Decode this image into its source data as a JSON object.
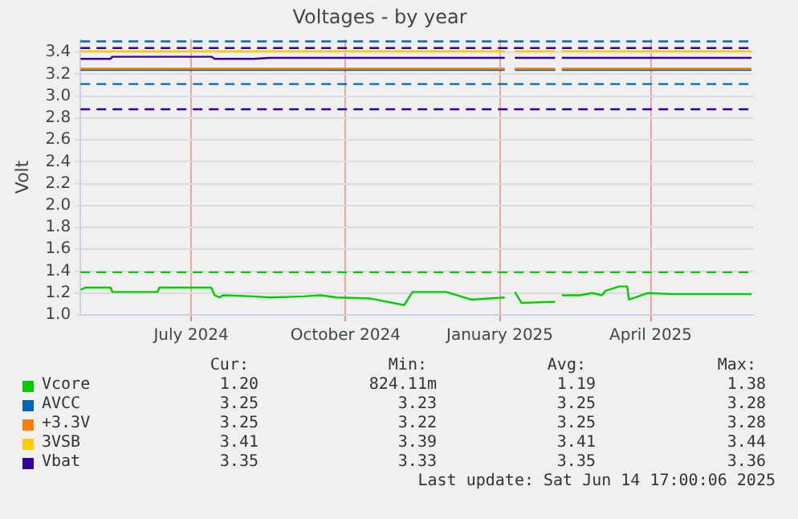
{
  "chart_data": {
    "type": "line",
    "title": "Voltages - by year",
    "ylabel": "Volt",
    "x": [
      "2024-05-10",
      "2024-05-13",
      "2024-05-28",
      "2024-05-29",
      "2024-06-25",
      "2024-06-26",
      "2024-07-27",
      "2024-07-29",
      "2024-08-01",
      "2024-08-03",
      "2024-08-21",
      "2024-08-31",
      "2024-09-20",
      "2024-09-30",
      "2024-10-10",
      "2024-10-30",
      "2024-11-19",
      "2024-11-24",
      "2024-12-14",
      "2024-12-29",
      "2025-01-18",
      "2025-01-22",
      "2025-01-24",
      "2025-01-28",
      "2025-02-17",
      "2025-02-19",
      "2025-02-21",
      "2025-03-04",
      "2025-03-11",
      "2025-03-17",
      "2025-03-19",
      "2025-03-27",
      "2025-04-01",
      "2025-04-02",
      "2025-04-06",
      "2025-04-13",
      "2025-04-28",
      "2025-06-14"
    ],
    "series": [
      {
        "name": "Vcore",
        "color": "#00cc00",
        "values": [
          1.23,
          1.25,
          1.25,
          1.21,
          1.21,
          1.25,
          1.25,
          1.18,
          1.16,
          1.18,
          1.17,
          1.16,
          1.17,
          1.18,
          1.16,
          1.15,
          1.09,
          1.21,
          1.21,
          1.14,
          1.16,
          null,
          1.21,
          1.11,
          1.12,
          null,
          1.18,
          1.18,
          1.2,
          1.18,
          1.22,
          1.26,
          1.26,
          1.14,
          1.16,
          1.2,
          1.19,
          1.19
        ]
      },
      {
        "name": "AVCC",
        "color": "#0066b3",
        "values": [
          3.24,
          3.24,
          3.24,
          3.24,
          3.24,
          3.24,
          3.24,
          3.24,
          3.24,
          3.24,
          3.24,
          3.24,
          3.24,
          3.24,
          3.24,
          3.24,
          3.24,
          3.24,
          3.24,
          3.24,
          3.24,
          null,
          3.24,
          3.24,
          3.24,
          null,
          3.24,
          3.24,
          3.24,
          3.24,
          3.24,
          3.24,
          3.24,
          3.24,
          3.24,
          3.24,
          3.24,
          3.24
        ]
      },
      {
        "name": "+3.3V",
        "color": "#ff8000",
        "values": [
          3.25,
          3.25,
          3.25,
          3.25,
          3.25,
          3.25,
          3.25,
          3.25,
          3.25,
          3.25,
          3.25,
          3.25,
          3.25,
          3.25,
          3.25,
          3.25,
          3.25,
          3.25,
          3.25,
          3.25,
          3.25,
          null,
          3.25,
          3.25,
          3.25,
          null,
          3.25,
          3.25,
          3.25,
          3.25,
          3.25,
          3.25,
          3.25,
          3.25,
          3.25,
          3.25,
          3.25,
          3.25
        ]
      },
      {
        "name": "3VSB",
        "color": "#ffcc00",
        "values": [
          3.41,
          3.41,
          3.41,
          3.41,
          3.41,
          3.41,
          3.41,
          3.41,
          3.41,
          3.41,
          3.41,
          3.41,
          3.41,
          3.41,
          3.41,
          3.41,
          3.41,
          3.41,
          3.41,
          3.41,
          3.41,
          null,
          3.41,
          3.41,
          3.41,
          null,
          3.41,
          3.41,
          3.41,
          3.41,
          3.41,
          3.41,
          3.41,
          3.41,
          3.41,
          3.41,
          3.41,
          3.41
        ]
      },
      {
        "name": "Vbat",
        "color": "#330099",
        "values": [
          3.34,
          3.34,
          3.34,
          3.36,
          3.36,
          3.36,
          3.36,
          3.34,
          3.34,
          3.34,
          3.34,
          3.35,
          3.35,
          3.35,
          3.35,
          3.35,
          3.35,
          3.35,
          3.35,
          3.35,
          3.35,
          null,
          3.35,
          3.35,
          3.35,
          null,
          3.35,
          3.35,
          3.35,
          3.35,
          3.35,
          3.35,
          3.35,
          3.35,
          3.35,
          3.35,
          3.35,
          3.35
        ]
      }
    ],
    "xlim": [
      "2024-05-10",
      "2025-06-15"
    ],
    "xticks": [
      {
        "value": "2024-07-15",
        "label": "July 2024"
      },
      {
        "value": "2024-10-15",
        "label": "October 2024"
      },
      {
        "value": "2025-01-15",
        "label": "January 2025"
      },
      {
        "value": "2025-04-15",
        "label": "April 2025"
      }
    ],
    "ylim": [
      1.0,
      3.52
    ],
    "yticks": [
      {
        "value": 1,
        "label": "1.0"
      },
      1.2,
      1.4,
      1.6,
      1.8,
      {
        "value": 2,
        "label": "2.0"
      },
      2.2,
      2.4,
      2.6,
      2.8,
      {
        "value": 3,
        "label": "3.0"
      },
      3.2,
      3.4
    ],
    "grid": true,
    "legend": "bottom",
    "marker": "none",
    "line_style": "solid",
    "ref_lines": [
      {
        "axis": "y",
        "value": 1.39,
        "color": "#00cc00",
        "line_style": "dashed"
      },
      {
        "axis": "y",
        "value": 3.5,
        "color": "#0066b3",
        "line_style": "dashed"
      },
      {
        "axis": "y",
        "value": 3.11,
        "color": "#0066b3",
        "line_style": "dashed"
      },
      {
        "axis": "y",
        "value": 3.44,
        "color": "#330099",
        "line_style": "dashed"
      },
      {
        "axis": "y",
        "value": 2.88,
        "color": "#330099",
        "line_style": "dashed"
      }
    ],
    "annotations": [
      "Cur:",
      "Min:",
      "Avg:",
      "Max:",
      "1.20",
      "824.11m",
      "1.19",
      "1.38",
      "3.25",
      "3.23",
      "3.25",
      "3.28",
      "3.25",
      "3.22",
      "3.25",
      "3.28",
      "3.41",
      "3.39",
      "3.41",
      "3.44",
      "3.35",
      "3.33",
      "3.35",
      "3.36",
      "Last update: Sat Jun 14 17:00:06 2025"
    ]
  }
}
